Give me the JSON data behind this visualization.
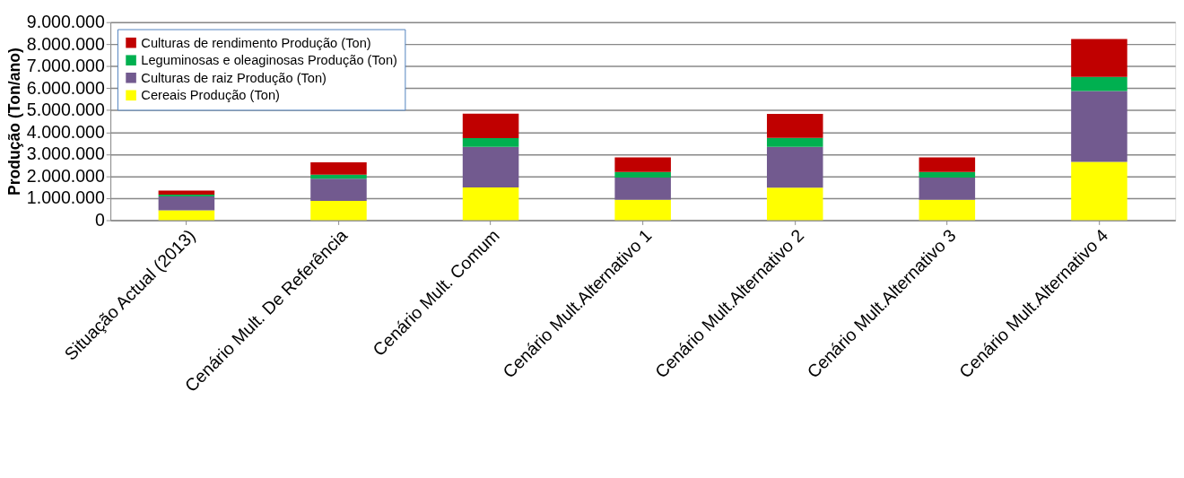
{
  "chart_data": {
    "type": "bar",
    "stacked": true,
    "ylabel": "Produção (Ton/ano)",
    "categories": [
      "Situação Actual (2013)",
      "Cenário Mult. De Referência",
      "Cenário Mult. Comum",
      "Cenário Mult.Alternativo 1",
      "Cenário Mult.Alternativo 2",
      "Cenário Mult.Alternativo 3",
      "Cenário Mult.Alternativo 4"
    ],
    "series": [
      {
        "name": "Cereais Produção (Ton)",
        "color": "#ffff00",
        "values": [
          450000,
          880000,
          1490000,
          930000,
          1480000,
          930000,
          2650000
        ]
      },
      {
        "name": "Culturas de raiz Produção (Ton)",
        "color": "#725a8f",
        "values": [
          630000,
          1010000,
          1840000,
          1010000,
          1850000,
          1010000,
          3220000
        ]
      },
      {
        "name": "Leguminosas e oleaginosas Produção (Ton)",
        "color": "#00b050",
        "values": [
          80000,
          180000,
          400000,
          250000,
          410000,
          250000,
          640000
        ]
      },
      {
        "name": "Culturas de rendimento Produção (Ton)",
        "color": "#c00000",
        "values": [
          190000,
          560000,
          1110000,
          660000,
          1090000,
          660000,
          1720000
        ]
      }
    ],
    "ylim": [
      0,
      9000000
    ],
    "yticks": [
      0,
      {
        "value": 1000000,
        "label": "1.000.000"
      },
      {
        "value": 2000000,
        "label": "2.000.000"
      },
      {
        "value": 3000000,
        "label": "3.000.000"
      },
      {
        "value": 4000000,
        "label": "4.000.000"
      },
      {
        "value": 5000000,
        "label": "5.000.000"
      },
      {
        "value": 6000000,
        "label": "6.000.000"
      },
      {
        "value": 7000000,
        "label": "7.000.000"
      },
      {
        "value": 8000000,
        "label": "8.000.000"
      },
      {
        "value": 9000000,
        "label": "9.000.000"
      }
    ],
    "grid": "y",
    "legend": "top left"
  }
}
